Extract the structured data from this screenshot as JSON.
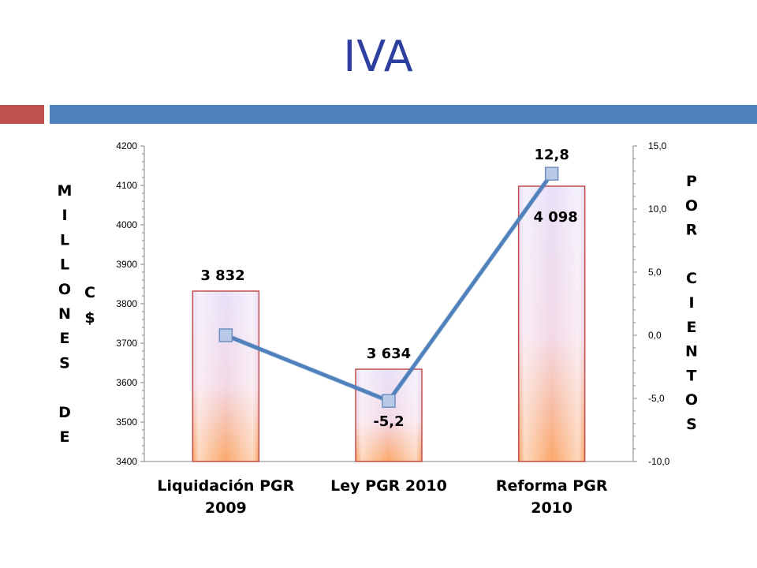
{
  "slide": {
    "title": "IVA"
  },
  "chart_data": {
    "type": "bar",
    "categories": [
      [
        "Liquidación PGR",
        "2009"
      ],
      [
        "Ley PGR 2010"
      ],
      [
        "Reforma PGR",
        "2010"
      ]
    ],
    "bar_values": [
      3832,
      3634,
      4098
    ],
    "bar_labels": [
      "3 832",
      "3 634",
      "4 098"
    ],
    "line_values": [
      0.0,
      -5.2,
      12.8
    ],
    "line_labels": [
      "",
      "-5,2",
      "12,8"
    ],
    "y_left": {
      "label_letters": [
        "M",
        "I",
        "L",
        "L",
        "O",
        "N",
        "E",
        "S",
        " ",
        "D",
        "E"
      ],
      "unit_letters": [
        "C",
        "$"
      ],
      "ylim": [
        3400,
        4200
      ],
      "ticks": [
        "3400",
        "3500",
        "3600",
        "3700",
        "3800",
        "3900",
        "4000",
        "4100",
        "4200"
      ]
    },
    "y_right": {
      "label_letters": [
        "P",
        "O",
        "R",
        " ",
        "C",
        "I",
        "E",
        "N",
        "T",
        "O",
        "S"
      ],
      "ylim": [
        -10,
        15
      ],
      "ticks": [
        "-10,0",
        "-5,0",
        "0,0",
        "5,0",
        "10,0",
        "15,0"
      ]
    },
    "colors": {
      "bar_border": "#c0504d",
      "bar_top": "#e8e0f8",
      "bar_bottom": "#fba76a",
      "line": "#4f81bd",
      "marker": "#b9c9e8"
    }
  }
}
